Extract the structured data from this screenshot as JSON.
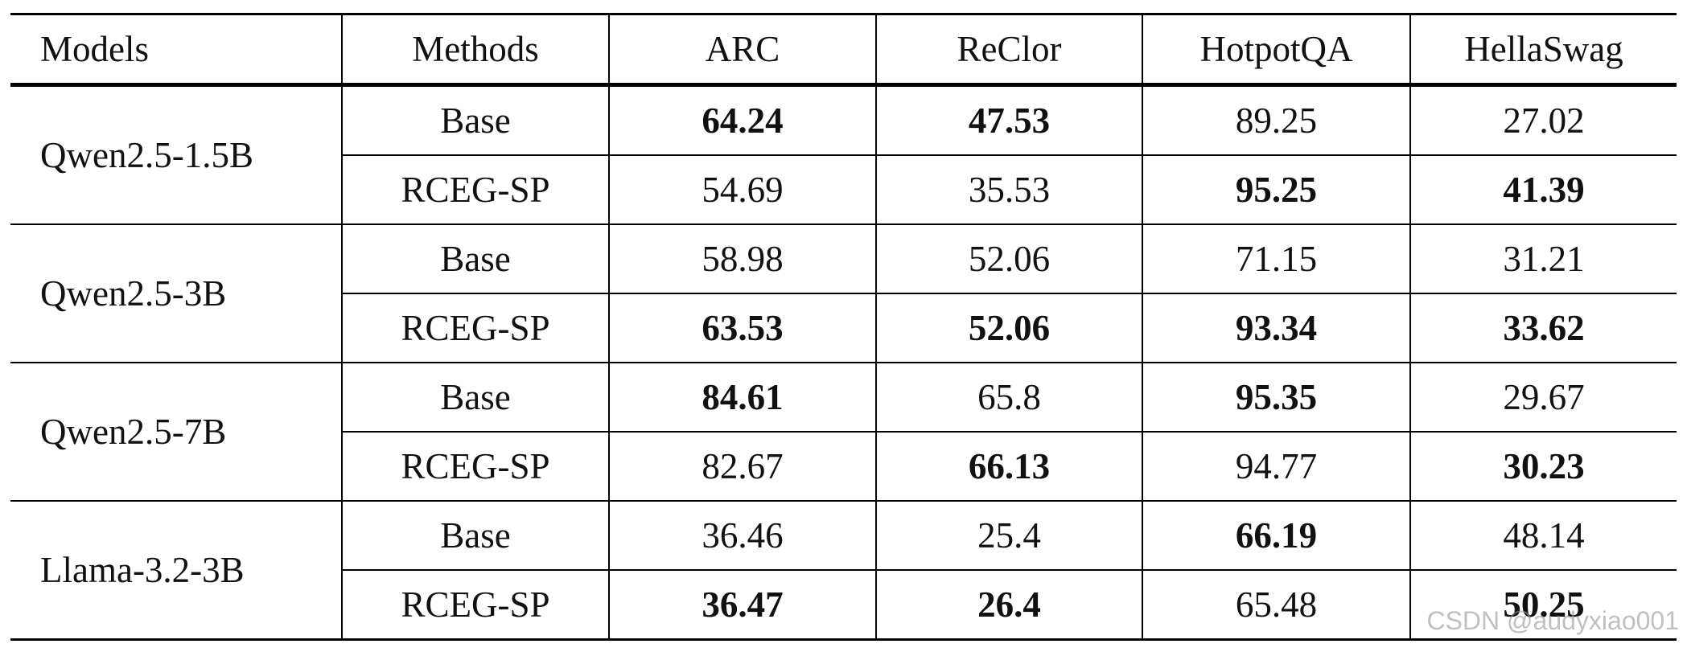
{
  "table": {
    "header": [
      "Models",
      "Methods",
      "ARC",
      "ReClor",
      "HotpotQA",
      "HellaSwag"
    ],
    "groups": [
      {
        "model": "Qwen2.5-1.5B",
        "rows": [
          {
            "method": "Base",
            "values": [
              "64.24",
              "47.53",
              "89.25",
              "27.02"
            ],
            "bold": [
              true,
              true,
              false,
              false
            ]
          },
          {
            "method": "RCEG-SP",
            "values": [
              "54.69",
              "35.53",
              "95.25",
              "41.39"
            ],
            "bold": [
              false,
              false,
              true,
              true
            ]
          }
        ]
      },
      {
        "model": "Qwen2.5-3B",
        "rows": [
          {
            "method": "Base",
            "values": [
              "58.98",
              "52.06",
              "71.15",
              "31.21"
            ],
            "bold": [
              false,
              false,
              false,
              false
            ]
          },
          {
            "method": "RCEG-SP",
            "values": [
              "63.53",
              "52.06",
              "93.34",
              "33.62"
            ],
            "bold": [
              true,
              true,
              true,
              true
            ]
          }
        ]
      },
      {
        "model": "Qwen2.5-7B",
        "rows": [
          {
            "method": "Base",
            "values": [
              "84.61",
              "65.8",
              "95.35",
              "29.67"
            ],
            "bold": [
              true,
              false,
              true,
              false
            ]
          },
          {
            "method": "RCEG-SP",
            "values": [
              "82.67",
              "66.13",
              "94.77",
              "30.23"
            ],
            "bold": [
              false,
              true,
              false,
              true
            ]
          }
        ]
      },
      {
        "model": "Llama-3.2-3B",
        "rows": [
          {
            "method": "Base",
            "values": [
              "36.46",
              "25.4",
              "66.19",
              "48.14"
            ],
            "bold": [
              false,
              false,
              true,
              false
            ]
          },
          {
            "method": "RCEG-SP",
            "values": [
              "36.47",
              "26.4",
              "65.48",
              "50.25"
            ],
            "bold": [
              true,
              true,
              false,
              true
            ]
          }
        ]
      }
    ]
  },
  "watermark": "CSDN @audyxiao001"
}
